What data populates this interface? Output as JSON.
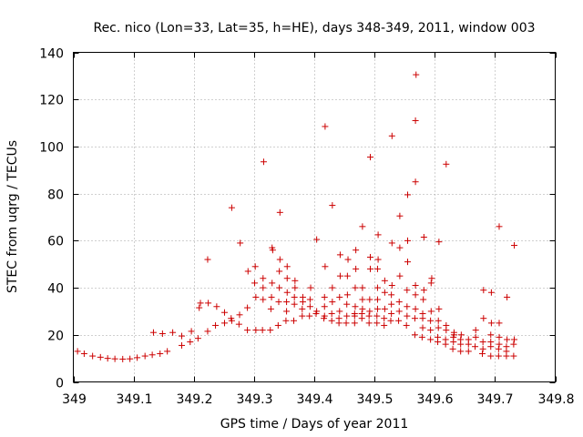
{
  "chart_data": {
    "type": "scatter",
    "title": "Rec. nico (Lon=33, Lat=35, h=HE), days 348-349, 2011, window 003",
    "xlabel": "GPS time / Days of year 2011",
    "ylabel": "STEC from uqrg / TECUs",
    "xlim": [
      349,
      349.8
    ],
    "ylim": [
      0,
      140
    ],
    "xticks": [
      349,
      349.1,
      349.2,
      349.3,
      349.4,
      349.5,
      349.6,
      349.7,
      349.8
    ],
    "xtick_labels": [
      "349",
      "349.1",
      "349.2",
      "349.3",
      "349.4",
      "349.5",
      "349.6",
      "349.7",
      "349.8"
    ],
    "yticks": [
      0,
      20,
      40,
      60,
      80,
      100,
      120,
      140
    ],
    "ytick_labels": [
      "0",
      "20",
      "40",
      "60",
      "80",
      "100",
      "120",
      "140"
    ],
    "grid": true,
    "marker": "+",
    "color": "#cc0000",
    "points": [
      [
        349.007,
        13
      ],
      [
        349.018,
        12
      ],
      [
        349.032,
        11
      ],
      [
        349.045,
        10.5
      ],
      [
        349.057,
        10
      ],
      [
        349.069,
        9.8
      ],
      [
        349.082,
        9.7
      ],
      [
        349.094,
        9.8
      ],
      [
        349.106,
        10.3
      ],
      [
        349.119,
        11
      ],
      [
        349.131,
        11.5
      ],
      [
        349.144,
        12
      ],
      [
        349.156,
        13
      ],
      [
        349.133,
        21
      ],
      [
        349.148,
        20.5
      ],
      [
        349.165,
        21
      ],
      [
        349.18,
        15.5
      ],
      [
        349.18,
        19.5
      ],
      [
        349.194,
        17
      ],
      [
        349.196,
        21.5
      ],
      [
        349.207,
        18.5
      ],
      [
        349.209,
        31.5
      ],
      [
        349.211,
        33.5
      ],
      [
        349.223,
        21.5
      ],
      [
        349.224,
        33.5
      ],
      [
        349.223,
        52
      ],
      [
        349.236,
        24
      ],
      [
        349.238,
        32
      ],
      [
        349.251,
        25
      ],
      [
        349.251,
        29.5
      ],
      [
        349.262,
        27
      ],
      [
        349.263,
        26
      ],
      [
        349.263,
        74
      ],
      [
        349.275,
        24.5
      ],
      [
        349.276,
        28.5
      ],
      [
        349.277,
        59
      ],
      [
        349.289,
        22
      ],
      [
        349.289,
        31.5
      ],
      [
        349.29,
        47
      ],
      [
        349.301,
        42
      ],
      [
        349.302,
        49
      ],
      [
        349.303,
        36
      ],
      [
        349.303,
        22
      ],
      [
        349.314,
        22
      ],
      [
        349.315,
        35
      ],
      [
        349.315,
        40
      ],
      [
        349.315,
        44
      ],
      [
        349.316,
        93.5
      ],
      [
        349.327,
        22
      ],
      [
        349.328,
        31
      ],
      [
        349.329,
        36
      ],
      [
        349.33,
        42
      ],
      [
        349.33,
        57
      ],
      [
        349.331,
        56
      ],
      [
        349.34,
        24
      ],
      [
        349.341,
        34
      ],
      [
        349.342,
        40
      ],
      [
        349.342,
        47
      ],
      [
        349.343,
        52
      ],
      [
        349.343,
        72
      ],
      [
        349.353,
        26
      ],
      [
        349.354,
        30
      ],
      [
        349.354,
        34
      ],
      [
        349.355,
        38
      ],
      [
        349.355,
        44
      ],
      [
        349.355,
        49
      ],
      [
        349.366,
        26
      ],
      [
        349.367,
        33
      ],
      [
        349.367,
        36
      ],
      [
        349.368,
        40
      ],
      [
        349.368,
        43
      ],
      [
        349.38,
        28
      ],
      [
        349.38,
        31
      ],
      [
        349.381,
        34
      ],
      [
        349.381,
        36
      ],
      [
        349.392,
        28
      ],
      [
        349.393,
        32
      ],
      [
        349.393,
        35
      ],
      [
        349.394,
        40
      ],
      [
        349.403,
        29
      ],
      [
        349.404,
        30
      ],
      [
        349.404,
        60.5
      ],
      [
        349.416,
        27
      ],
      [
        349.417,
        28
      ],
      [
        349.417,
        32
      ],
      [
        349.417,
        36
      ],
      [
        349.418,
        49
      ],
      [
        349.418,
        108.5
      ],
      [
        349.429,
        26
      ],
      [
        349.429,
        29
      ],
      [
        349.43,
        34
      ],
      [
        349.43,
        40
      ],
      [
        349.43,
        75
      ],
      [
        349.441,
        25
      ],
      [
        349.441,
        27
      ],
      [
        349.442,
        30
      ],
      [
        349.442,
        36
      ],
      [
        349.443,
        45
      ],
      [
        349.443,
        54
      ],
      [
        349.453,
        25
      ],
      [
        349.454,
        28
      ],
      [
        349.454,
        33
      ],
      [
        349.455,
        37
      ],
      [
        349.455,
        45
      ],
      [
        349.456,
        52
      ],
      [
        349.467,
        25
      ],
      [
        349.467,
        28
      ],
      [
        349.467,
        29
      ],
      [
        349.468,
        32
      ],
      [
        349.468,
        40
      ],
      [
        349.469,
        48
      ],
      [
        349.469,
        56
      ],
      [
        349.479,
        27
      ],
      [
        349.479,
        29
      ],
      [
        349.48,
        31
      ],
      [
        349.48,
        35
      ],
      [
        349.48,
        40
      ],
      [
        349.48,
        66
      ],
      [
        349.491,
        25
      ],
      [
        349.491,
        28
      ],
      [
        349.492,
        30
      ],
      [
        349.492,
        35
      ],
      [
        349.493,
        48
      ],
      [
        349.493,
        53
      ],
      [
        349.493,
        95.5
      ],
      [
        349.504,
        25
      ],
      [
        349.504,
        28
      ],
      [
        349.505,
        31
      ],
      [
        349.505,
        35
      ],
      [
        349.505,
        40
      ],
      [
        349.505,
        48
      ],
      [
        349.506,
        52
      ],
      [
        349.506,
        62.5
      ],
      [
        349.516,
        24
      ],
      [
        349.516,
        27
      ],
      [
        349.517,
        31
      ],
      [
        349.517,
        38
      ],
      [
        349.517,
        43
      ],
      [
        349.527,
        26
      ],
      [
        349.528,
        29
      ],
      [
        349.528,
        33
      ],
      [
        349.528,
        37
      ],
      [
        349.529,
        41
      ],
      [
        349.529,
        59
      ],
      [
        349.529,
        104.5
      ],
      [
        349.54,
        26
      ],
      [
        349.541,
        30
      ],
      [
        349.541,
        34
      ],
      [
        349.542,
        45
      ],
      [
        349.542,
        57
      ],
      [
        349.542,
        70.5
      ],
      [
        349.553,
        24
      ],
      [
        349.554,
        28
      ],
      [
        349.554,
        32
      ],
      [
        349.554,
        39
      ],
      [
        349.555,
        51
      ],
      [
        349.555,
        60
      ],
      [
        349.555,
        79.5
      ],
      [
        349.567,
        20
      ],
      [
        349.567,
        27
      ],
      [
        349.568,
        31
      ],
      [
        349.568,
        37
      ],
      [
        349.568,
        41
      ],
      [
        349.568,
        85
      ],
      [
        349.568,
        111
      ],
      [
        349.569,
        130.5
      ],
      [
        349.579,
        19
      ],
      [
        349.58,
        23
      ],
      [
        349.58,
        27
      ],
      [
        349.58,
        29
      ],
      [
        349.581,
        35
      ],
      [
        349.582,
        39
      ],
      [
        349.582,
        61.5
      ],
      [
        349.593,
        18
      ],
      [
        349.593,
        22
      ],
      [
        349.593,
        26
      ],
      [
        349.594,
        30
      ],
      [
        349.594,
        42
      ],
      [
        349.595,
        44
      ],
      [
        349.605,
        17
      ],
      [
        349.605,
        19
      ],
      [
        349.606,
        23
      ],
      [
        349.606,
        26
      ],
      [
        349.607,
        31
      ],
      [
        349.607,
        59.5
      ],
      [
        349.618,
        16
      ],
      [
        349.618,
        18
      ],
      [
        349.619,
        22
      ],
      [
        349.619,
        24
      ],
      [
        349.619,
        92.5
      ],
      [
        349.63,
        14
      ],
      [
        349.631,
        17
      ],
      [
        349.631,
        19
      ],
      [
        349.632,
        20
      ],
      [
        349.632,
        21
      ],
      [
        349.643,
        13
      ],
      [
        349.643,
        16
      ],
      [
        349.643,
        18
      ],
      [
        349.644,
        20
      ],
      [
        349.656,
        13
      ],
      [
        349.656,
        16
      ],
      [
        349.656,
        18
      ],
      [
        349.667,
        15
      ],
      [
        349.668,
        19
      ],
      [
        349.668,
        22
      ],
      [
        349.679,
        12
      ],
      [
        349.68,
        14
      ],
      [
        349.68,
        17
      ],
      [
        349.681,
        27
      ],
      [
        349.681,
        39
      ],
      [
        349.693,
        11
      ],
      [
        349.693,
        15
      ],
      [
        349.693,
        17
      ],
      [
        349.693,
        20
      ],
      [
        349.694,
        25
      ],
      [
        349.694,
        38
      ],
      [
        349.706,
        11
      ],
      [
        349.706,
        14
      ],
      [
        349.707,
        16
      ],
      [
        349.707,
        19
      ],
      [
        349.707,
        25
      ],
      [
        349.707,
        66
      ],
      [
        349.719,
        11
      ],
      [
        349.719,
        13
      ],
      [
        349.719,
        15
      ],
      [
        349.72,
        18
      ],
      [
        349.72,
        36
      ],
      [
        349.731,
        11
      ],
      [
        349.731,
        16
      ],
      [
        349.732,
        18
      ],
      [
        349.732,
        58
      ]
    ]
  }
}
